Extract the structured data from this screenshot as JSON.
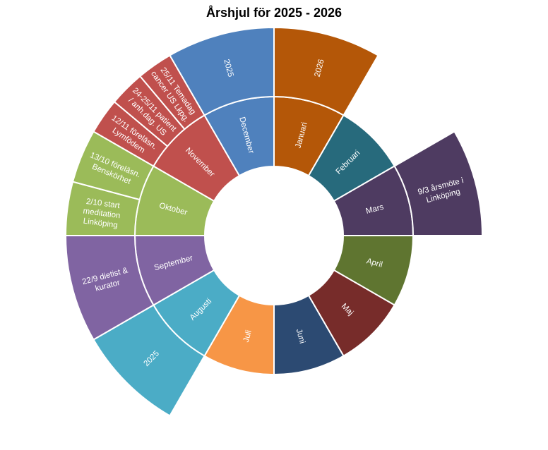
{
  "chart_data": {
    "type": "sunburst",
    "title": "Årshjul för 2025 - 2026",
    "months": [
      {
        "label": "Januari",
        "value": 1,
        "color": "#B45708",
        "children": [
          {
            "label": "2026",
            "value": 1
          }
        ]
      },
      {
        "label": "Februari",
        "value": 1,
        "color": "#276A7C",
        "children": []
      },
      {
        "label": "Mars",
        "value": 1,
        "color": "#4E3B61",
        "children": [
          {
            "label": "9/3 årsmöte i Linköping",
            "value": 1
          }
        ]
      },
      {
        "label": "April",
        "value": 1,
        "color": "#5F7530",
        "children": []
      },
      {
        "label": "Maj",
        "value": 1,
        "color": "#772C2A",
        "children": []
      },
      {
        "label": "Juni",
        "value": 1,
        "color": "#2C4A72",
        "children": []
      },
      {
        "label": "Juli",
        "value": 1,
        "color": "#F79646",
        "children": []
      },
      {
        "label": "Augusti",
        "value": 1,
        "color": "#4BACC6",
        "children": [
          {
            "label": "2025",
            "value": 1
          }
        ]
      },
      {
        "label": "September",
        "value": 1,
        "color": "#8064A2",
        "children": [
          {
            "label": "22/9 dietist & kurator",
            "value": 1
          }
        ]
      },
      {
        "label": "Oktober",
        "value": 1,
        "color": "#9BBB59",
        "children": [
          {
            "label": "2/10 start meditation Linköping",
            "value": 0.5
          },
          {
            "label": "13/10 föreläsn. Benskörhet",
            "value": 0.5
          }
        ]
      },
      {
        "label": "November",
        "value": 1,
        "color": "#C0504D",
        "children": [
          {
            "label": "12/11 föreläsn. Lymfödem",
            "value": 0.3333
          },
          {
            "label": "24-25/11 patient-/anh.dag. US",
            "value": 0.3333
          },
          {
            "label": "25/11 Temadag cancer US Lkpg.",
            "value": 0.3333
          }
        ]
      },
      {
        "label": "December",
        "value": 1,
        "color": "#4F81BD",
        "children": [
          {
            "label": "2025",
            "value": 1
          }
        ]
      }
    ],
    "label_lines": {
      "9/3 årsmöte i Linköping": [
        "9/3 årsmöte i",
        "Linköping"
      ],
      "22/9 dietist & kurator": [
        "22/9 dietist &",
        "kurator"
      ],
      "2/10 start meditation Linköping": [
        "2/10 start",
        "meditation",
        "Linköping"
      ],
      "13/10 föreläsn. Benskörhet": [
        "13/10 föreläsn.",
        "Benskörhet"
      ],
      "12/11 föreläsn. Lymfödem": [
        "12/11 föreläsn.",
        "Lymfödem"
      ],
      "24-25/11 patient-/anh.dag. US": [
        "24-25/11 patient",
        "/ anh.dag. US"
      ],
      "25/11 Temadag cancer US Lkpg.": [
        "25/11 Temadag",
        "cancer US Lkpg."
      ]
    }
  }
}
